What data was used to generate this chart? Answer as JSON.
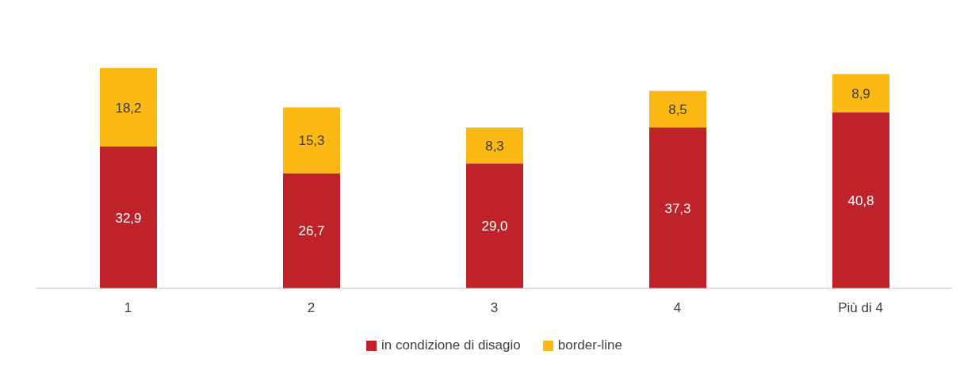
{
  "chart_data": {
    "type": "bar",
    "stacked": true,
    "categories": [
      "1",
      "2",
      "3",
      "4",
      "Più di 4"
    ],
    "series": [
      {
        "name": "in condizione di disagio",
        "color": "#c0222a",
        "values": [
          32.9,
          26.7,
          29.0,
          37.3,
          40.8
        ],
        "value_labels": [
          "32,9",
          "26,7",
          "29,0",
          "37,3",
          "40,8"
        ]
      },
      {
        "name": "border-line",
        "color": "#fdb913",
        "values": [
          18.2,
          15.3,
          8.3,
          8.5,
          8.9
        ],
        "value_labels": [
          "18,2",
          "15,3",
          "8,3",
          "8,5",
          "8,9"
        ]
      }
    ],
    "legend": "bottom",
    "grid": false
  }
}
